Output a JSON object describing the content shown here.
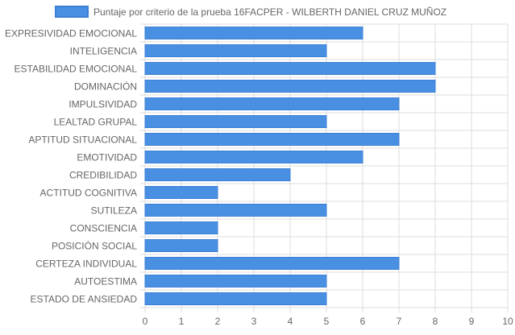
{
  "chart_data": {
    "type": "bar",
    "orientation": "horizontal",
    "categories": [
      "EXPRESIVIDAD EMOCIONAL",
      "INTELIGENCIA",
      "ESTABILIDAD EMOCIONAL",
      "DOMINACIÓN",
      "IMPULSIVIDAD",
      "LEALTAD GRUPAL",
      "APTITUD SITUACIONAL",
      "EMOTIVIDAD",
      "CREDIBILIDAD",
      "ACTITUD COGNITIVA",
      "SUTILEZA",
      "CONSCIENCIA",
      "POSICIÓN SOCIAL",
      "CERTEZA INDIVIDUAL",
      "AUTOESTIMA",
      "ESTADO DE ANSIEDAD"
    ],
    "series": [
      {
        "name": "Puntaje por criterio de la prueba 16FACPER - WILBERTH DANIEL CRUZ MUÑOZ",
        "values": [
          6,
          5,
          8,
          8,
          7,
          5,
          7,
          6,
          4,
          2,
          5,
          2,
          2,
          7,
          5,
          5
        ]
      }
    ],
    "xlim": [
      0,
      10
    ],
    "xticks": [
      "0",
      "1",
      "2",
      "3",
      "4",
      "5",
      "6",
      "7",
      "8",
      "9",
      "10"
    ],
    "grid": true,
    "legend_position": "top-center",
    "colors": {
      "bar_fill": "#4a90e2",
      "bar_border": "#3a7fd5",
      "grid": "#dddddd",
      "text": "#666666"
    }
  }
}
